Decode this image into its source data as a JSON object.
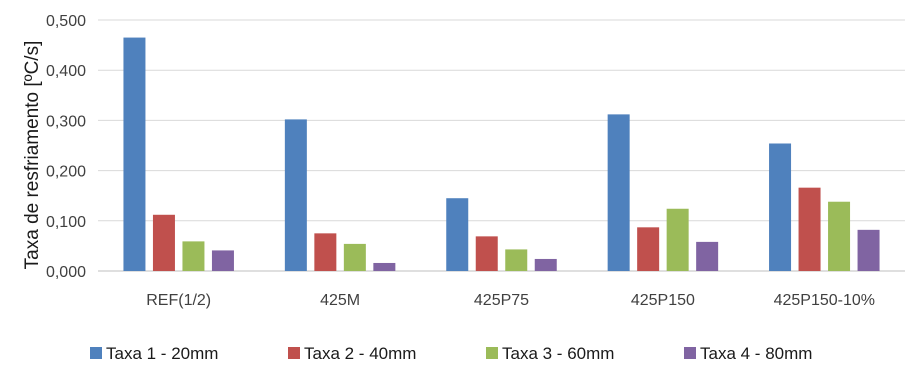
{
  "chart_data": {
    "type": "bar",
    "title": "",
    "xlabel": "",
    "ylabel": "Taxa de resfriamento [ºC/s]",
    "ylim": [
      0,
      0.5
    ],
    "yticks": [
      "0,000",
      "0,100",
      "0,200",
      "0,300",
      "0,400",
      "0,500"
    ],
    "grid": true,
    "legend_position": "bottom",
    "categories": [
      "REF(1/2)",
      "425M",
      "425P75",
      "425P150",
      "425P150-10%"
    ],
    "series": [
      {
        "name": "Taxa 1 - 20mm",
        "color": "#4f81bd",
        "values": [
          0.465,
          0.302,
          0.145,
          0.312,
          0.254
        ]
      },
      {
        "name": "Taxa 2 - 40mm",
        "color": "#c0504d",
        "values": [
          0.112,
          0.075,
          0.069,
          0.087,
          0.166
        ]
      },
      {
        "name": "Taxa 3 - 60mm",
        "color": "#9bbb59",
        "values": [
          0.059,
          0.054,
          0.043,
          0.124,
          0.138
        ]
      },
      {
        "name": "Taxa 4 - 80mm",
        "color": "#8064a2",
        "values": [
          0.041,
          0.016,
          0.024,
          0.058,
          0.082
        ]
      }
    ]
  }
}
